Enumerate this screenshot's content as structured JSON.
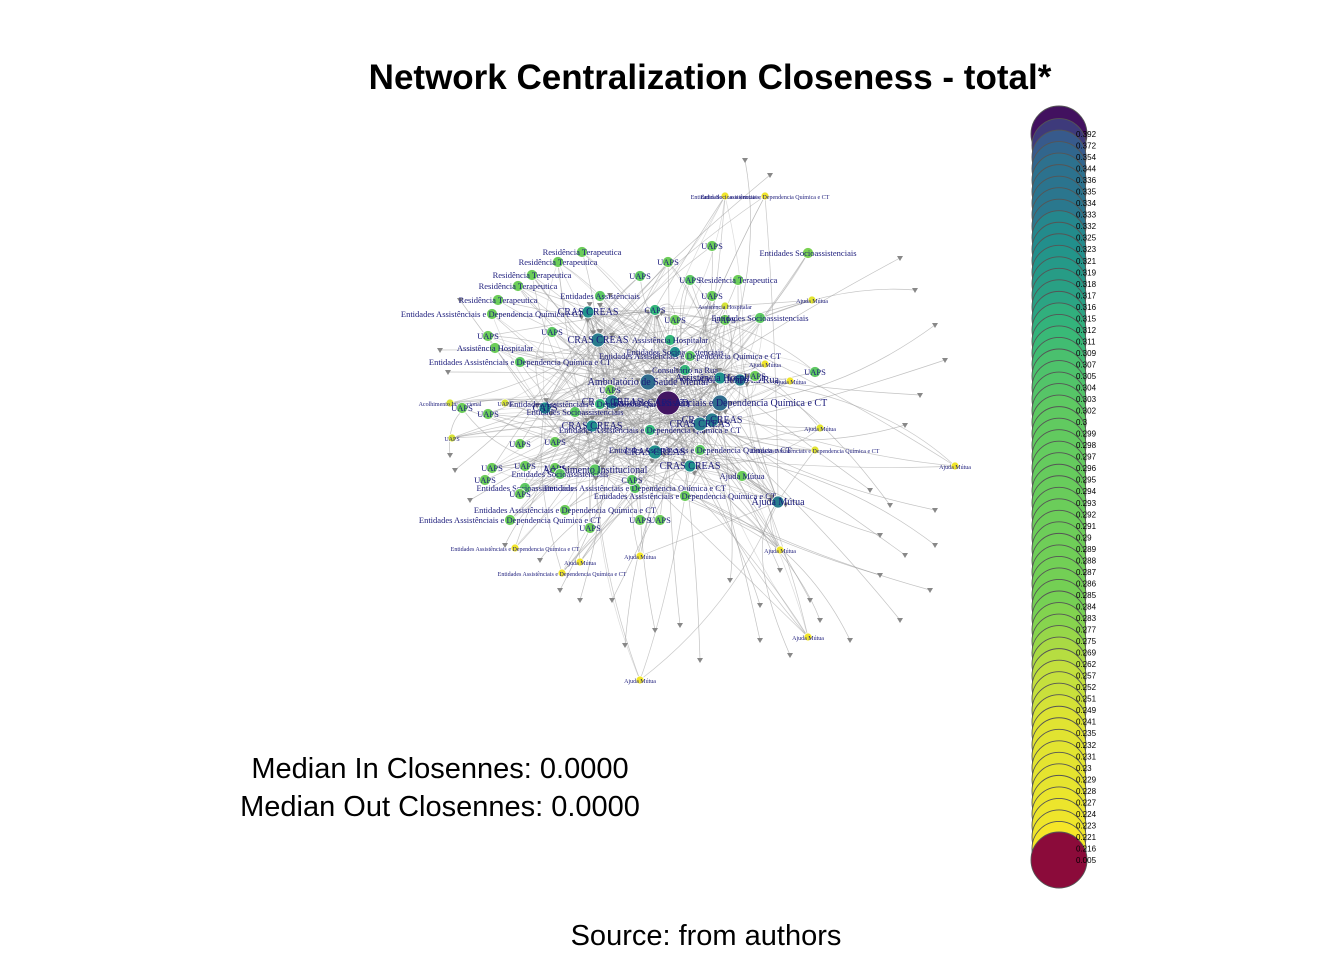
{
  "title": "Network Centralization Closeness - total*",
  "stats": {
    "median_in": "Median In Closennes: 0.0000",
    "median_out": "Median Out Closennes: 0.0000"
  },
  "source": "Source: from authors",
  "colors": {
    "low": "#fde725",
    "mid": "#5ec962",
    "high": "#21918c",
    "top": "#3b528b",
    "max": "#440154",
    "zero": "#8b0b3a",
    "edge": "#9a9a9a",
    "label": "#1a1a7a"
  },
  "legend": {
    "values": [
      "0.392",
      "0.372",
      "0.354",
      "0.344",
      "0.336",
      "0.335",
      "0.334",
      "0.333",
      "0.332",
      "0.325",
      "0.323",
      "0.321",
      "0.319",
      "0.318",
      "0.317",
      "0.316",
      "0.315",
      "0.312",
      "0.311",
      "0.309",
      "0.307",
      "0.305",
      "0.304",
      "0.303",
      "0.302",
      "0.3",
      "0.299",
      "0.298",
      "0.297",
      "0.296",
      "0.295",
      "0.294",
      "0.293",
      "0.292",
      "0.291",
      "0.29",
      "0.289",
      "0.288",
      "0.287",
      "0.286",
      "0.285",
      "0.284",
      "0.283",
      "0.277",
      "0.275",
      "0.269",
      "0.262",
      "0.257",
      "0.252",
      "0.251",
      "0.249",
      "0.241",
      "0.235",
      "0.232",
      "0.231",
      "0.23",
      "0.229",
      "0.228",
      "0.227",
      "0.224",
      "0.223",
      "0.221",
      "0.216",
      "0.005"
    ]
  },
  "network": {
    "nodes": [
      {
        "label": "Entidades Assistênciais e Dependencia Química e CT",
        "v": 0.22
      },
      {
        "label": "Entidades Socioassistenciais",
        "v": 0.22
      },
      {
        "label": "UAPS",
        "v": 0.29
      },
      {
        "label": "Entidades Socioassistenciais",
        "v": 0.28
      },
      {
        "label": "Residência Terapeutica",
        "v": 0.29
      },
      {
        "label": "Residência Terapeutica",
        "v": 0.29
      },
      {
        "label": "Residência Terapeutica",
        "v": 0.29
      },
      {
        "label": "Residência Terapeutica",
        "v": 0.29
      },
      {
        "label": "Residência Terapeutica",
        "v": 0.29
      },
      {
        "label": "UAPS",
        "v": 0.29
      },
      {
        "label": "UAPS",
        "v": 0.3
      },
      {
        "label": "UAPS",
        "v": 0.3
      },
      {
        "label": "Residência Terapeutica",
        "v": 0.29
      },
      {
        "label": "Entidades Assistênciais",
        "v": 0.3
      },
      {
        "label": "UAPS",
        "v": 0.29
      },
      {
        "label": "Assistência Hospitalar",
        "v": 0.24
      },
      {
        "label": "Ajuda Mútua",
        "v": 0.23
      },
      {
        "label": "CRAS CREAS",
        "v": 0.32
      },
      {
        "label": "CAPS",
        "v": 0.31
      },
      {
        "label": "Entidades Assistênciais e Dependencia Química e CT",
        "v": 0.29
      },
      {
        "label": "UAPS",
        "v": 0.29
      },
      {
        "label": "UAPS",
        "v": 0.29
      },
      {
        "label": "UAPS",
        "v": 0.3
      },
      {
        "label": "Entidades Socioassistenciais",
        "v": 0.3
      },
      {
        "label": "CRAS CREAS",
        "v": 0.33
      },
      {
        "label": "Assistência Hospitalar",
        "v": 0.31
      },
      {
        "label": "UAPS",
        "v": 0.29
      },
      {
        "label": "Assistência Hospitalar",
        "v": 0.29
      },
      {
        "label": "Entidades Socioassistenciais",
        "v": 0.32
      },
      {
        "label": "Entidades Assistênciais e Dependencia Química e CT",
        "v": 0.3
      },
      {
        "label": "Entidades Assistênciais e Dependencia Química e CT",
        "v": 0.3
      },
      {
        "label": "Consultório na Rua",
        "v": 0.31
      },
      {
        "label": "Ajuda Mútua",
        "v": 0.22
      },
      {
        "label": "UAPS",
        "v": 0.3
      },
      {
        "label": "Ambulatório de Saúde Mental",
        "v": 0.34
      },
      {
        "label": "Consultório na Rua",
        "v": 0.33
      },
      {
        "label": "Assistência Hospitalar",
        "v": 0.32
      },
      {
        "label": "UAPS",
        "v": 0.29
      },
      {
        "label": "Ajuda Mútua",
        "v": 0.22
      },
      {
        "label": "UAPS",
        "v": 0.29
      },
      {
        "label": "Acolhimento Institucional",
        "v": 0.24
      },
      {
        "label": "UAPS",
        "v": 0.24
      },
      {
        "label": "UAPS",
        "v": 0.29
      },
      {
        "label": "UAPS",
        "v": 0.29
      },
      {
        "label": "CAPS",
        "v": 0.32
      },
      {
        "label": "CRAS CREAS",
        "v": 0.33
      },
      {
        "label": "Entidades Socioassistenciais",
        "v": 0.3
      },
      {
        "label": "Entidades Assistênciais e Dependencia Química e CT",
        "v": 0.31
      },
      {
        "label": "CAPS AD",
        "v": 0.39
      },
      {
        "label": "Entidades Assistênciais e Dependencia Química e CT",
        "v": 0.34
      },
      {
        "label": "CRAS CREAS",
        "v": 0.33
      },
      {
        "label": "CRAS CREAS",
        "v": 0.32
      },
      {
        "label": "Entidades Assistênciais e Dependencia Química e CT",
        "v": 0.31
      },
      {
        "label": "Ajuda Mútua",
        "v": 0.23
      },
      {
        "label": "UAPS",
        "v": 0.24
      },
      {
        "label": "UAPS",
        "v": 0.29
      },
      {
        "label": "UAPS",
        "v": 0.29
      },
      {
        "label": "CRAS CREAS",
        "v": 0.32
      },
      {
        "label": "Entidades Assistênciais e Dependencia Química e CT",
        "v": 0.3
      },
      {
        "label": "Entidades Assistênciais e Dependencia Química e CT",
        "v": 0.23
      },
      {
        "label": "Ajuda Mútua",
        "v": 0.22
      },
      {
        "label": "UAPS",
        "v": 0.29
      },
      {
        "label": "UAPS",
        "v": 0.29
      },
      {
        "label": "UAPS",
        "v": 0.29
      },
      {
        "label": "UAPS",
        "v": 0.29
      },
      {
        "label": "Acolhimento Institucional",
        "v": 0.3
      },
      {
        "label": "CRAS CREAS",
        "v": 0.32
      },
      {
        "label": "Entidades Socioassistenciais",
        "v": 0.3
      },
      {
        "label": "Entidades Assistênciais e Dependencia Química e CT",
        "v": 0.3
      },
      {
        "label": "Ajuda Mútua",
        "v": 0.29
      },
      {
        "label": "Entidades Assistênciais e Dependencia Química e CT",
        "v": 0.29
      },
      {
        "label": "CAPS",
        "v": 0.3
      },
      {
        "label": "UAPS",
        "v": 0.29
      },
      {
        "label": "Entidades Assistênciais e Dependencia Química e CT",
        "v": 0.29
      },
      {
        "label": "UAPS",
        "v": 0.29
      },
      {
        "label": "UAPS",
        "v": 0.29
      },
      {
        "label": "UAPS",
        "v": 0.29
      },
      {
        "label": "Ajuda Mútua",
        "v": 0.33
      },
      {
        "label": "Entidades Assistênciais e Dependencia Química e CT",
        "v": 0.29
      },
      {
        "label": "Ajuda Mútua",
        "v": 0.22
      },
      {
        "label": "Entidades Assistênciais e Dependencia Química e CT",
        "v": 0.22
      },
      {
        "label": "Ajuda Mútua",
        "v": 0.22
      },
      {
        "label": "Entidades Assistênciais e Dependencia Química e CT",
        "v": 0.22
      },
      {
        "label": "Ajuda Mútua",
        "v": 0.22
      },
      {
        "label": "Ajuda Mútua",
        "v": 0.22
      },
      {
        "label": "Ajuda Mútua",
        "v": 0.22
      },
      {
        "label": "CRAS CREAS",
        "v": 0.33
      },
      {
        "label": "Entidades Socioassistenciais",
        "v": 0.3
      }
    ]
  }
}
